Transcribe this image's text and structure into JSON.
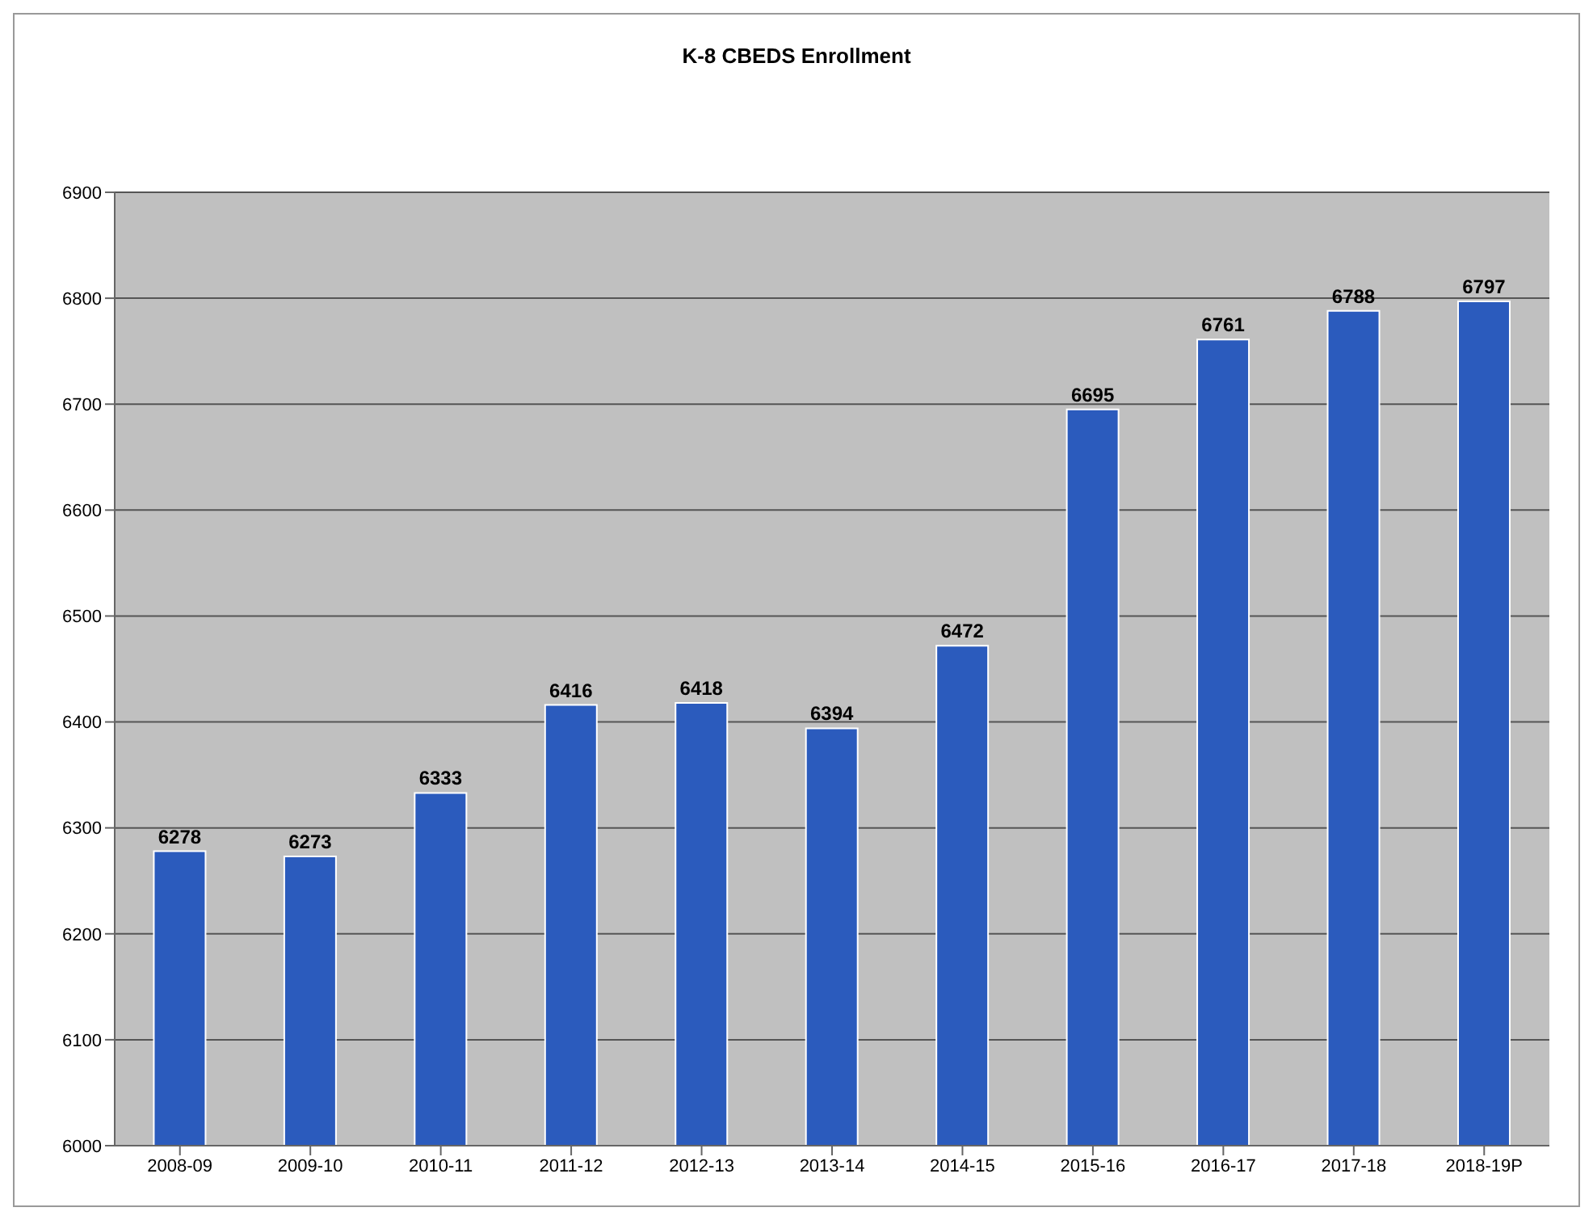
{
  "chart_data": {
    "type": "bar",
    "title": "K-8 CBEDS Enrollment",
    "categories": [
      "2008-09",
      "2009-10",
      "2010-11",
      "2011-12",
      "2012-13",
      "2013-14",
      "2014-15",
      "2015-16",
      "2016-17",
      "2017-18",
      "2018-19P"
    ],
    "values": [
      6278,
      6273,
      6333,
      6416,
      6418,
      6394,
      6472,
      6695,
      6761,
      6788,
      6797
    ],
    "color": "#2b5bbd",
    "ylim": [
      6000,
      6900
    ],
    "yticks": [
      6000,
      6100,
      6200,
      6300,
      6400,
      6500,
      6600,
      6700,
      6800,
      6900
    ],
    "grid": "y",
    "data_labels": true
  }
}
